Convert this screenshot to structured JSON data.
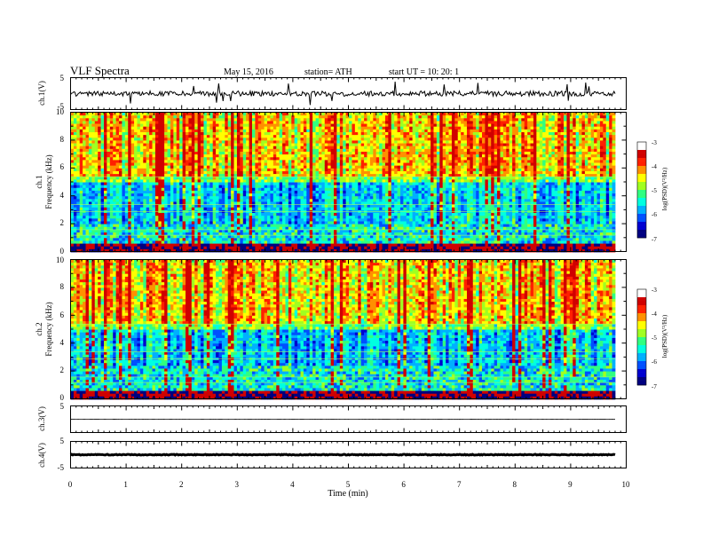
{
  "header": {
    "title": "VLF  Spectra",
    "date": "May 15, 2016",
    "station": "station= ATH",
    "start_ut": "start  UT  =    10: 20: 1"
  },
  "labels": {
    "ch1_voltage": "ch.1(V)",
    "ch1_spectrogram": "ch.1",
    "ch2_spectrogram": "ch.2",
    "frequency": "Frequency  (kHz)",
    "ch3_voltage": "ch.3(V)",
    "ch4_voltage": "ch.4(V)",
    "colorbar": "log(PSD)(V²/Hz)",
    "xaxis": "Time  (min)"
  },
  "colors": {
    "colormap": [
      "#000080",
      "#0000d0",
      "#0050ff",
      "#00b0ff",
      "#00ffe0",
      "#30ff80",
      "#a0ff20",
      "#ffff00",
      "#ff9000",
      "#ff2000",
      "#d00000",
      "#ffffff"
    ]
  },
  "chart_data": [
    {
      "type": "line",
      "name": "ch.1 waveform",
      "ylabel": "ch.1(V)",
      "ylim": [
        -5,
        5
      ],
      "yticks": [
        5,
        -5
      ],
      "xlim": [
        0,
        10
      ],
      "baseline_v": 0,
      "noise_amplitude_v": 0.8,
      "spike_amplitude_v": 3
    },
    {
      "type": "heatmap",
      "name": "ch.1 spectrogram",
      "ylabel": "Frequency  (kHz)",
      "ylim": [
        0,
        10
      ],
      "yticks": [
        0,
        2,
        4,
        6,
        8,
        10
      ],
      "xlim": [
        0,
        10
      ],
      "data_end_min": 9.8,
      "colorbar": {
        "label": "log(PSD)(V²/Hz)",
        "range": [
          -7,
          -3
        ],
        "ticks": [
          -3,
          -4,
          -5,
          -6,
          -7
        ]
      },
      "low_band_khz": [
        0,
        0.6
      ],
      "quiet_band_khz": [
        2,
        5
      ],
      "active_band_khz": [
        5.5,
        10
      ]
    },
    {
      "type": "heatmap",
      "name": "ch.2 spectrogram",
      "ylabel": "Frequency  (kHz)",
      "ylim": [
        0,
        10
      ],
      "yticks": [
        0,
        2,
        4,
        6,
        8,
        10
      ],
      "xlim": [
        0,
        10
      ],
      "data_end_min": 9.8,
      "colorbar": {
        "label": "log(PSD)(V²/Hz)",
        "range": [
          -7,
          -3
        ],
        "ticks": [
          -3,
          -4,
          -5,
          -6,
          -7
        ]
      },
      "low_band_khz": [
        0,
        0.6
      ],
      "quiet_band_khz": [
        2.5,
        5
      ],
      "active_band_khz": [
        5.5,
        10
      ]
    },
    {
      "type": "line",
      "name": "ch.3 waveform",
      "ylabel": "ch.3(V)",
      "ylim": [
        -5,
        5
      ],
      "yticks": [
        5
      ],
      "xlim": [
        0,
        10
      ],
      "baseline_v": 0
    },
    {
      "type": "line",
      "name": "ch.4 waveform",
      "ylabel": "ch.4(V)",
      "ylim": [
        -5,
        5
      ],
      "yticks": [
        5,
        -5
      ],
      "xlim": [
        0,
        10
      ],
      "baseline_v": 0,
      "xlabel": "Time  (min)",
      "xticks": [
        0,
        1,
        2,
        3,
        4,
        5,
        6,
        7,
        8,
        9,
        10
      ]
    }
  ]
}
